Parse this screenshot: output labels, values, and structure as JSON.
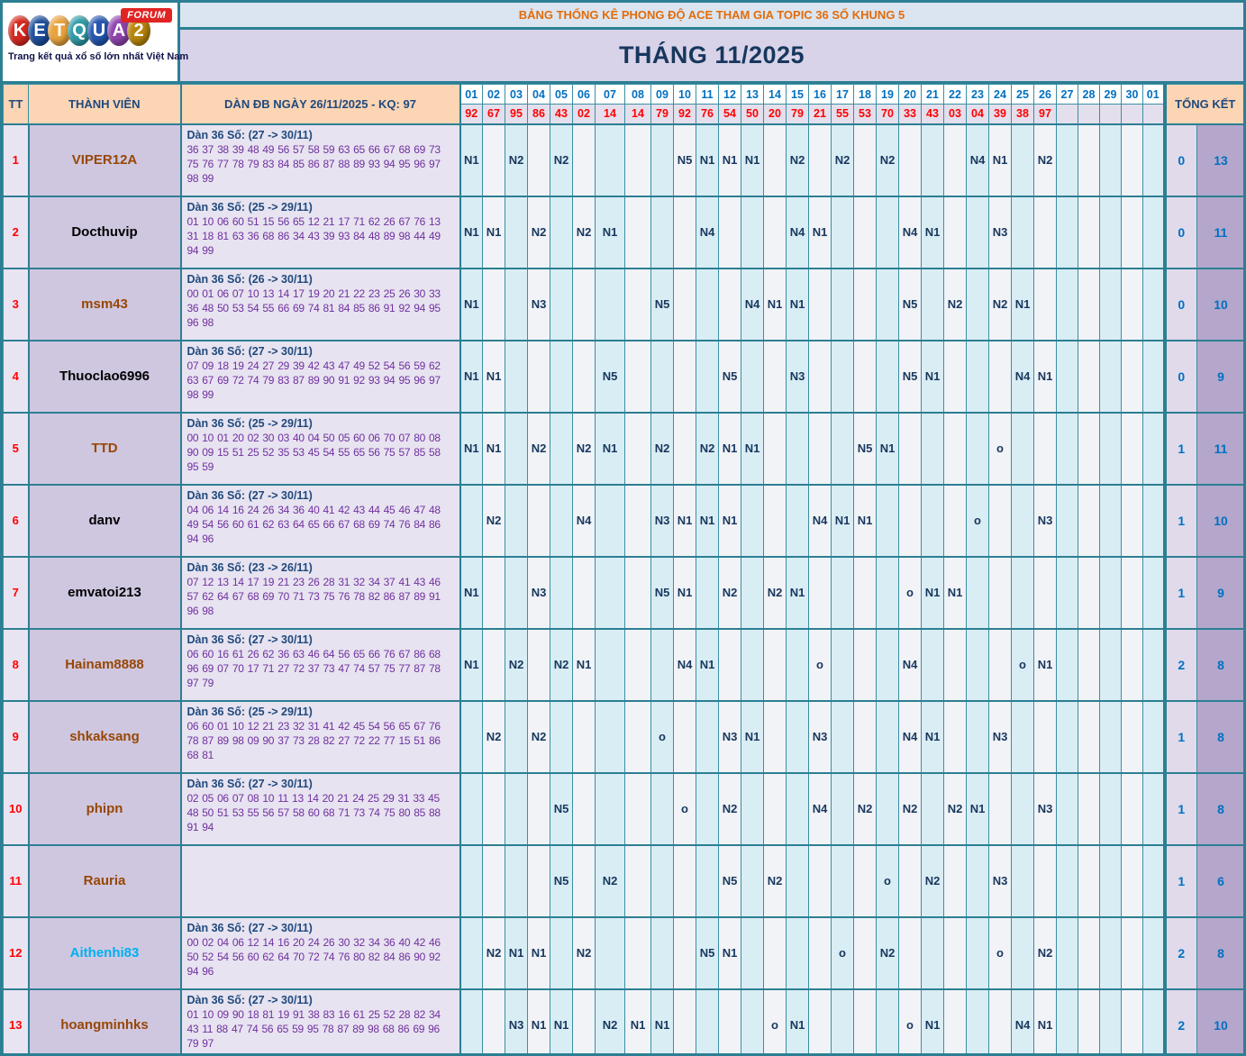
{
  "logo": {
    "brand": "KETQUA2",
    "badge": "FORUM",
    "tagline": "Trang kết quả xổ số lớn nhất Việt Nam",
    "letters": [
      {
        "ch": "K",
        "bg": "#d6281e"
      },
      {
        "ch": "E",
        "bg": "#1d4f9c"
      },
      {
        "ch": "T",
        "bg": "#e8a33d"
      },
      {
        "ch": "Q",
        "bg": "#2e9ba6"
      },
      {
        "ch": "U",
        "bg": "#2456b0"
      },
      {
        "ch": "A",
        "bg": "#8e44ad"
      },
      {
        "ch": "2",
        "bg": "#b8860b"
      }
    ]
  },
  "banner": "BẢNG THỐNG KÊ PHONG ĐỘ ACE THAM GIA TOPIC 36 SỐ KHUNG 5",
  "title": "THÁNG 11/2025",
  "table": {
    "headers": {
      "tt": "TT",
      "member": "THÀNH VIÊN",
      "dan": "DÀN ĐB NGÀY 26/11/2025 - KQ: 97",
      "tongket": "TỔNG KẾT"
    },
    "days": [
      "01",
      "02",
      "03",
      "04",
      "05",
      "06",
      "07",
      "08",
      "09",
      "10",
      "11",
      "12",
      "13",
      "14",
      "15",
      "16",
      "17",
      "18",
      "19",
      "20",
      "21",
      "22",
      "23",
      "24",
      "25",
      "26",
      "27",
      "28",
      "29",
      "30",
      "01"
    ],
    "results": [
      "92",
      "67",
      "95",
      "86",
      "43",
      "02",
      "14",
      "14",
      "79",
      "92",
      "76",
      "54",
      "50",
      "20",
      "79",
      "21",
      "55",
      "53",
      "70",
      "33",
      "43",
      "03",
      "04",
      "39",
      "38",
      "97",
      "",
      "",
      "",
      "",
      ""
    ],
    "rows": [
      {
        "tt": "1",
        "name": "VIPER12A",
        "name_color": "#974706",
        "dan_title": "Dàn 36 Số: (27 -> 30/11)",
        "dan_numbers": "36 37 38 39 48 49 56 57 58 59 63 65 66 67 68 69 73 75 76 77 78 79 83 84 85 86 87 88 89 93 94 95 96 97 98 99",
        "marks": {
          "0": "N1",
          "2": "N2",
          "4": "N2",
          "9": "N5",
          "10": "N1",
          "11": "N1",
          "12": "N1",
          "14": "N2",
          "16": "N2",
          "18": "N2",
          "22": "N4",
          "23": "N1",
          "25": "N2"
        },
        "tk1": "0",
        "tk2": "13"
      },
      {
        "tt": "2",
        "name": "Docthuvip",
        "name_color": "#000000",
        "dan_title": "Dàn 36 Số: (25 -> 29/11)",
        "dan_numbers": "01 10 06 60 51 15 56 65 12 21 17 71 62 26 67 76 13 31 18 81 63 36 68 86 34 43 39 93 84 48 89 98 44 49 94 99",
        "marks": {
          "0": "N1",
          "1": "N1",
          "3": "N2",
          "5": "N2",
          "6": "N1",
          "10": "N4",
          "14": "N4",
          "15": "N1",
          "19": "N4",
          "20": "N1",
          "23": "N3"
        },
        "tk1": "0",
        "tk2": "11"
      },
      {
        "tt": "3",
        "name": "msm43",
        "name_color": "#974706",
        "dan_title": "Dàn 36 Số: (26 -> 30/11)",
        "dan_numbers": "00 01 06 07 10 13 14 17 19 20 21 22 23 25 26 30 33 36 48 50 53 54 55 66 69 74 81 84 85 86 91 92 94 95 96 98",
        "marks": {
          "0": "N1",
          "3": "N3",
          "8": "N5",
          "12": "N4",
          "13": "N1",
          "14": "N1",
          "19": "N5",
          "21": "N2",
          "23": "N2",
          "24": "N1"
        },
        "tk1": "0",
        "tk2": "10"
      },
      {
        "tt": "4",
        "name": "Thuoclao6996",
        "name_color": "#000000",
        "dan_title": "Dàn 36 Số: (27 -> 30/11)",
        "dan_numbers": "07 09 18 19 24 27 29 39 42 43 47 49 52 54 56 59 62 63 67 69 72 74 79 83 87 89 90 91 92 93 94 95 96 97 98 99",
        "marks": {
          "0": "N1",
          "1": "N1",
          "6": "N5",
          "11": "N5",
          "14": "N3",
          "19": "N5",
          "20": "N1",
          "24": "N4",
          "25": "N1"
        },
        "tk1": "0",
        "tk2": "9"
      },
      {
        "tt": "5",
        "name": "TTD",
        "name_color": "#974706",
        "dan_title": "Dàn 36 Số: (25 -> 29/11)",
        "dan_numbers": "00 10 01 20 02 30 03 40 04 50 05 60 06 70 07 80 08 90 09 15 51 25 52 35 53 45 54 55 65 56 75 57 85 58 95 59",
        "marks": {
          "0": "N1",
          "1": "N1",
          "3": "N2",
          "5": "N2",
          "6": "N1",
          "8": "N2",
          "10": "N2",
          "11": "N1",
          "12": "N1",
          "17": "N5",
          "18": "N1",
          "23": "o"
        },
        "tk1": "1",
        "tk2": "11"
      },
      {
        "tt": "6",
        "name": "danv",
        "name_color": "#000000",
        "dan_title": "Dàn 36 Số: (27 -> 30/11)",
        "dan_numbers": "04 06 14 16 24 26 34 36 40 41 42 43 44 45 46 47 48 49 54 56 60 61 62 63 64 65 66 67 68 69 74 76 84 86 94 96",
        "marks": {
          "1": "N2",
          "5": "N4",
          "8": "N3",
          "9": "N1",
          "10": "N1",
          "11": "N1",
          "15": "N4",
          "16": "N1",
          "17": "N1",
          "22": "o",
          "25": "N3"
        },
        "tk1": "1",
        "tk2": "10"
      },
      {
        "tt": "7",
        "name": "emvatoi213",
        "name_color": "#000000",
        "dan_title": "Dàn 36 Số: (23 -> 26/11)",
        "dan_numbers": "07 12 13 14 17 19 21 23 26 28 31 32 34 37 41 43 46 57 62 64 67 68 69 70 71 73 75 76 78 82 86 87 89 91 96 98",
        "marks": {
          "0": "N1",
          "3": "N3",
          "8": "N5",
          "9": "N1",
          "11": "N2",
          "13": "N2",
          "14": "N1",
          "19": "o",
          "20": "N1",
          "21": "N1"
        },
        "tk1": "1",
        "tk2": "9"
      },
      {
        "tt": "8",
        "name": "Hainam8888",
        "name_color": "#974706",
        "dan_title": "Dàn 36 Số: (27 -> 30/11)",
        "dan_numbers": "06 60 16 61 26 62 36 63 46 64 56 65 66 76 67 86 68 96 69 07 70 17 71 27 72 37 73 47 74 57 75 77 87 78 97 79",
        "marks": {
          "0": "N1",
          "2": "N2",
          "4": "N2",
          "5": "N1",
          "9": "N4",
          "10": "N1",
          "15": "o",
          "19": "N4",
          "24": "o",
          "25": "N1"
        },
        "tk1": "2",
        "tk2": "8"
      },
      {
        "tt": "9",
        "name": "shkaksang",
        "name_color": "#974706",
        "dan_title": "Dàn 36 Số: (25 -> 29/11)",
        "dan_numbers": "06 60 01 10 12 21 23 32 31 41 42 45 54 56 65 67 76 78 87 89 98 09 90 37 73 28 82 27 72 22 77 15 51 86 68 81",
        "marks": {
          "1": "N2",
          "3": "N2",
          "8": "o",
          "11": "N3",
          "12": "N1",
          "15": "N3",
          "19": "N4",
          "20": "N1",
          "23": "N3"
        },
        "tk1": "1",
        "tk2": "8"
      },
      {
        "tt": "10",
        "name": "phipn",
        "name_color": "#974706",
        "dan_title": "Dàn 36 Số: (27 -> 30/11)",
        "dan_numbers": "02 05 06 07 08 10 11 13 14 20 21 24 25 29 31 33 45 48 50 51 53 55 56 57 58 60 68 71 73 74 75 80 85 88 91 94",
        "marks": {
          "4": "N5",
          "9": "o",
          "11": "N2",
          "15": "N4",
          "17": "N2",
          "19": "N2",
          "21": "N2",
          "22": "N1",
          "25": "N3"
        },
        "tk1": "1",
        "tk2": "8"
      },
      {
        "tt": "11",
        "name": "Rauria",
        "name_color": "#974706",
        "dan_title": "",
        "dan_numbers": "",
        "marks": {
          "4": "N5",
          "6": "N2",
          "11": "N5",
          "13": "N2",
          "18": "o",
          "20": "N2",
          "23": "N3"
        },
        "tk1": "1",
        "tk2": "6"
      },
      {
        "tt": "12",
        "name": "Aithenhi83",
        "name_color": "#00b0f0",
        "dan_title": "Dàn 36 Số: (27 -> 30/11)",
        "dan_numbers": "00 02 04 06 12 14 16 20 24 26 30 32 34 36 40 42 46 50 52 54 56 60 62 64 70 72 74 76 80 82 84 86 90 92 94 96",
        "marks": {
          "1": "N2",
          "2": "N1",
          "3": "N1",
          "5": "N2",
          "10": "N5",
          "11": "N1",
          "16": "o",
          "18": "N2",
          "23": "o",
          "25": "N2"
        },
        "tk1": "2",
        "tk2": "8"
      },
      {
        "tt": "13",
        "name": "hoangminhks",
        "name_color": "#974706",
        "dan_title": "Dàn 36 Số: (27 -> 30/11)",
        "dan_numbers": "01 10 09 90 18 81 19 91 38 83 16 61 25 52 28 82 34 43 11 88 47 74 56 65 59 95 78 87 89 98 68 86 69 96 79 97",
        "marks": {
          "2": "N3",
          "3": "N1",
          "4": "N1",
          "6": "N2",
          "7": "N1",
          "8": "N1",
          "13": "o",
          "14": "N1",
          "19": "o",
          "20": "N1",
          "24": "N4",
          "25": "N1"
        },
        "tk1": "2",
        "tk2": "10"
      }
    ]
  }
}
